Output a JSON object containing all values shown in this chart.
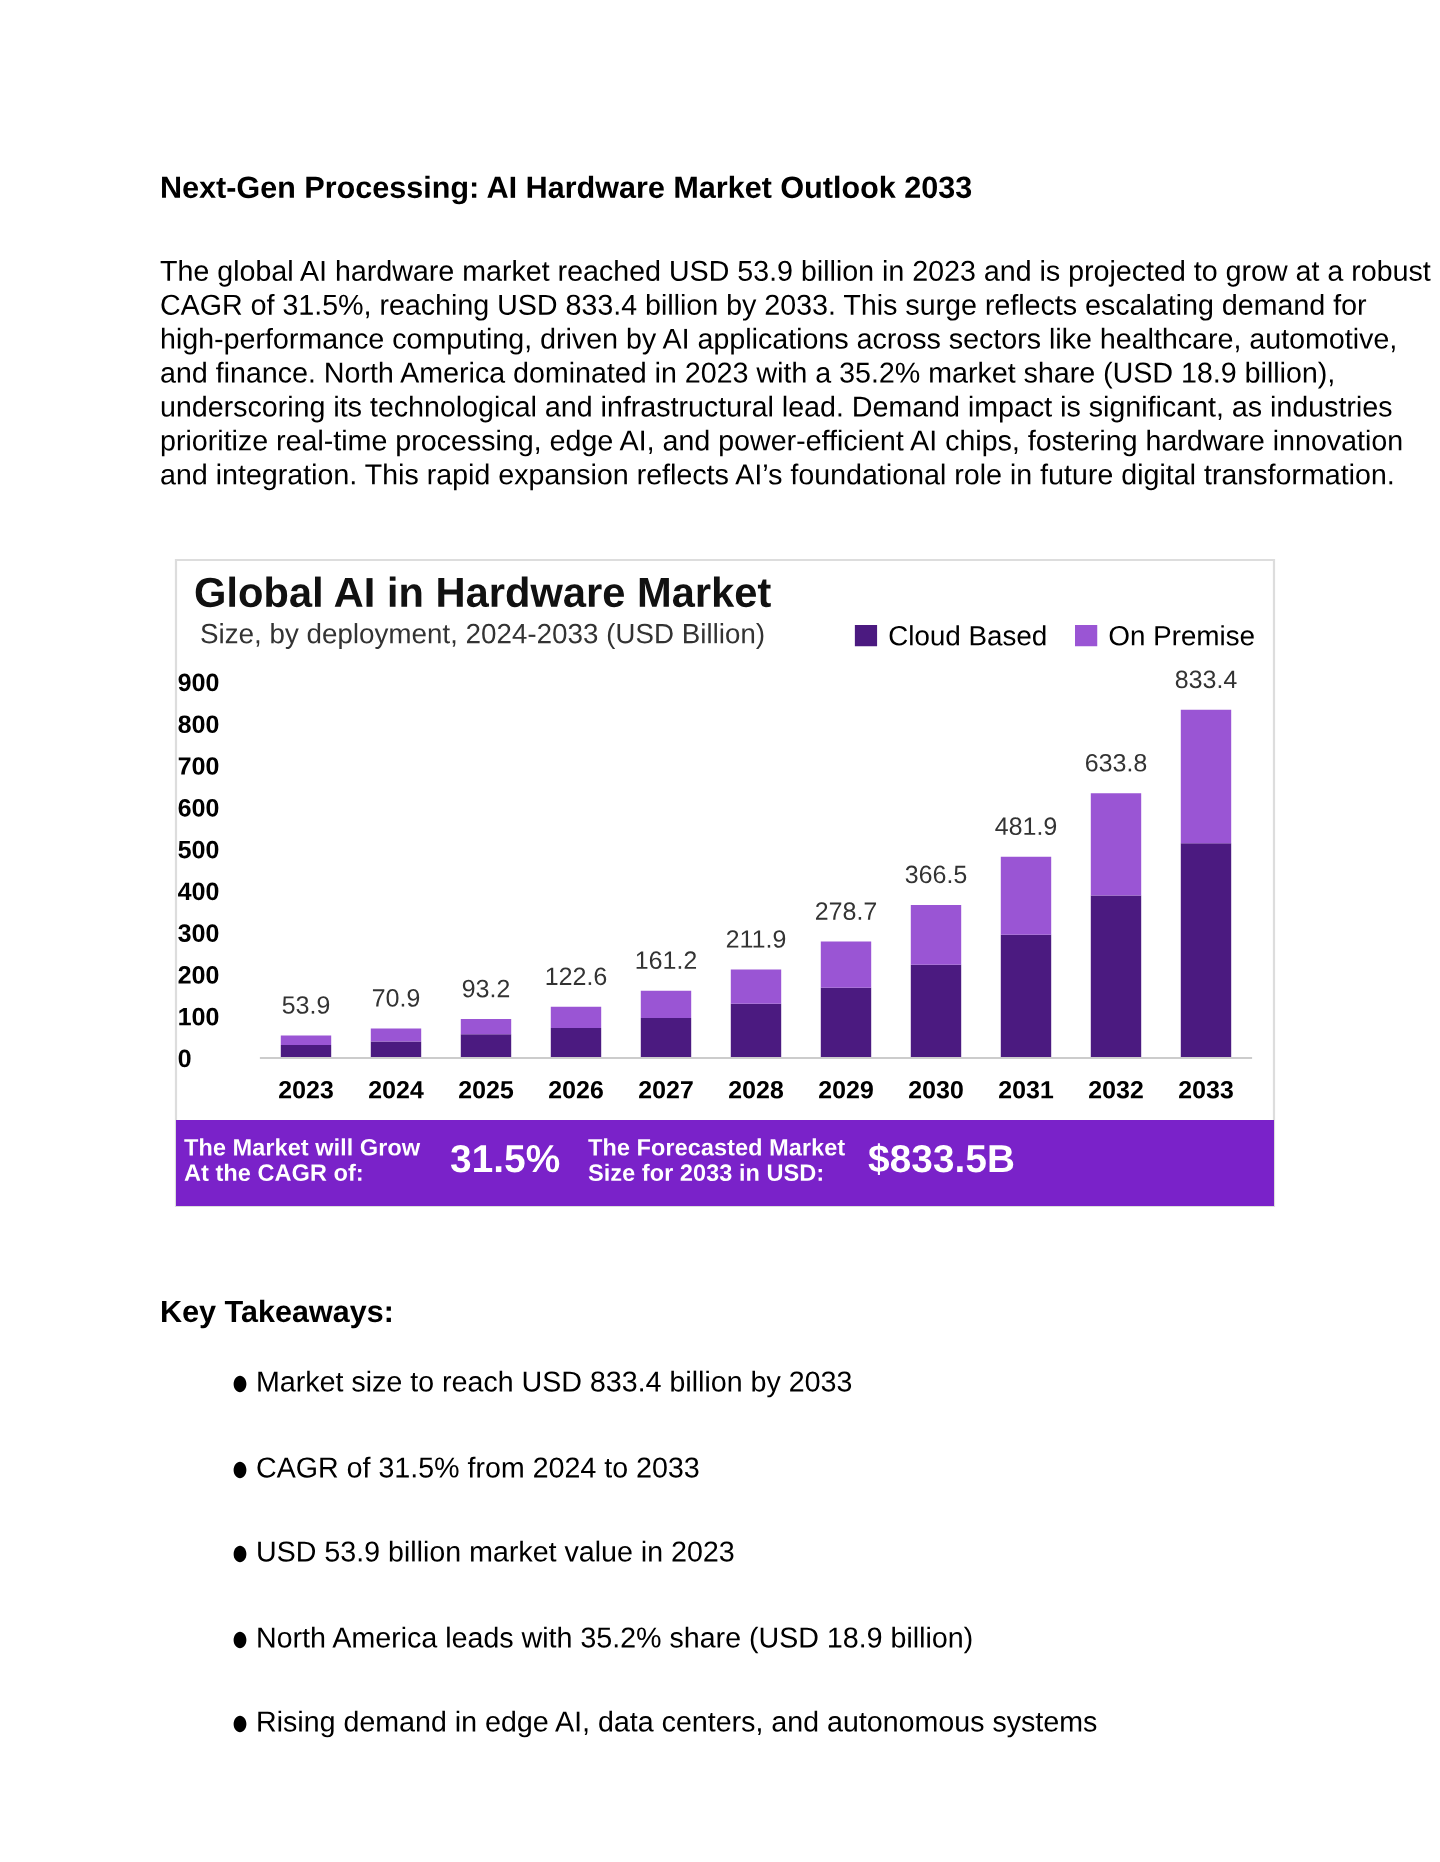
{
  "chart_data": {
    "type": "bar",
    "stacked": true,
    "title": "Global AI in Hardware Market",
    "subtitle": "Size, by deployment, 2024-2033 (USD Billion)",
    "categories": [
      "2023",
      "2024",
      "2025",
      "2026",
      "2027",
      "2028",
      "2029",
      "2030",
      "2031",
      "2032",
      "2033"
    ],
    "series": [
      {
        "name": "Cloud Based",
        "color": "#4b1a80",
        "values": [
          31,
          39.4,
          56.6,
          72,
          96,
          130,
          168,
          223,
          295,
          389,
          514
        ]
      },
      {
        "name": "On Premise",
        "color": "#9a55d4",
        "values": [
          22.9,
          31.5,
          36.6,
          50.6,
          65.2,
          81.9,
          110.7,
          143.5,
          186.9,
          244.8,
          319.4
        ]
      }
    ],
    "totals": [
      "53.9",
      "70.9",
      "93.2",
      "122.6",
      "161.2",
      "211.9",
      "278.7",
      "366.5",
      "481.9",
      "633.8",
      "833.4"
    ],
    "ylim": [
      0,
      900
    ],
    "yticks": [
      0,
      100,
      200,
      300,
      400,
      500,
      600,
      700,
      800,
      900
    ],
    "grid": false,
    "legend": "top right",
    "annotations": [
      "Next-Gen Processing: AI Hardware Market Outlook 2033",
      "The global AI hardware market reached USD 53.9 billion in 2023 and is projected to grow at a robust CAGR of 31.5%, reaching USD 833.4 billion by 2033. This surge reflects escalating demand for high-performance computing, driven by AI applications across sectors like healthcare, automotive, and finance. North America dominated in 2023 with a 35.2% market share (USD 18.9 billion), underscoring its technological and infrastructural lead. Demand impact is significant, as industries prioritize real-time processing, edge AI, and power-efficient AI chips, fostering hardware innovation and integration. This rapid expansion reflects AI’s foundational role in future digital transformation.",
      "The Market will Grow\nAt the CAGR of:",
      "31.5%",
      "The Forecasted Market\nSize for 2033 in USD:",
      "$833.5B",
      "Key Takeaways:",
      "Market size to reach USD 833.4 billion by 2033",
      "CAGR of 31.5% from 2024 to 2033",
      "USD 53.9 billion market value in 2023",
      "North America leads with 35.2% share (USD 18.9 billion)",
      "Rising demand in edge AI, data centers, and autonomous systems"
    ]
  }
}
